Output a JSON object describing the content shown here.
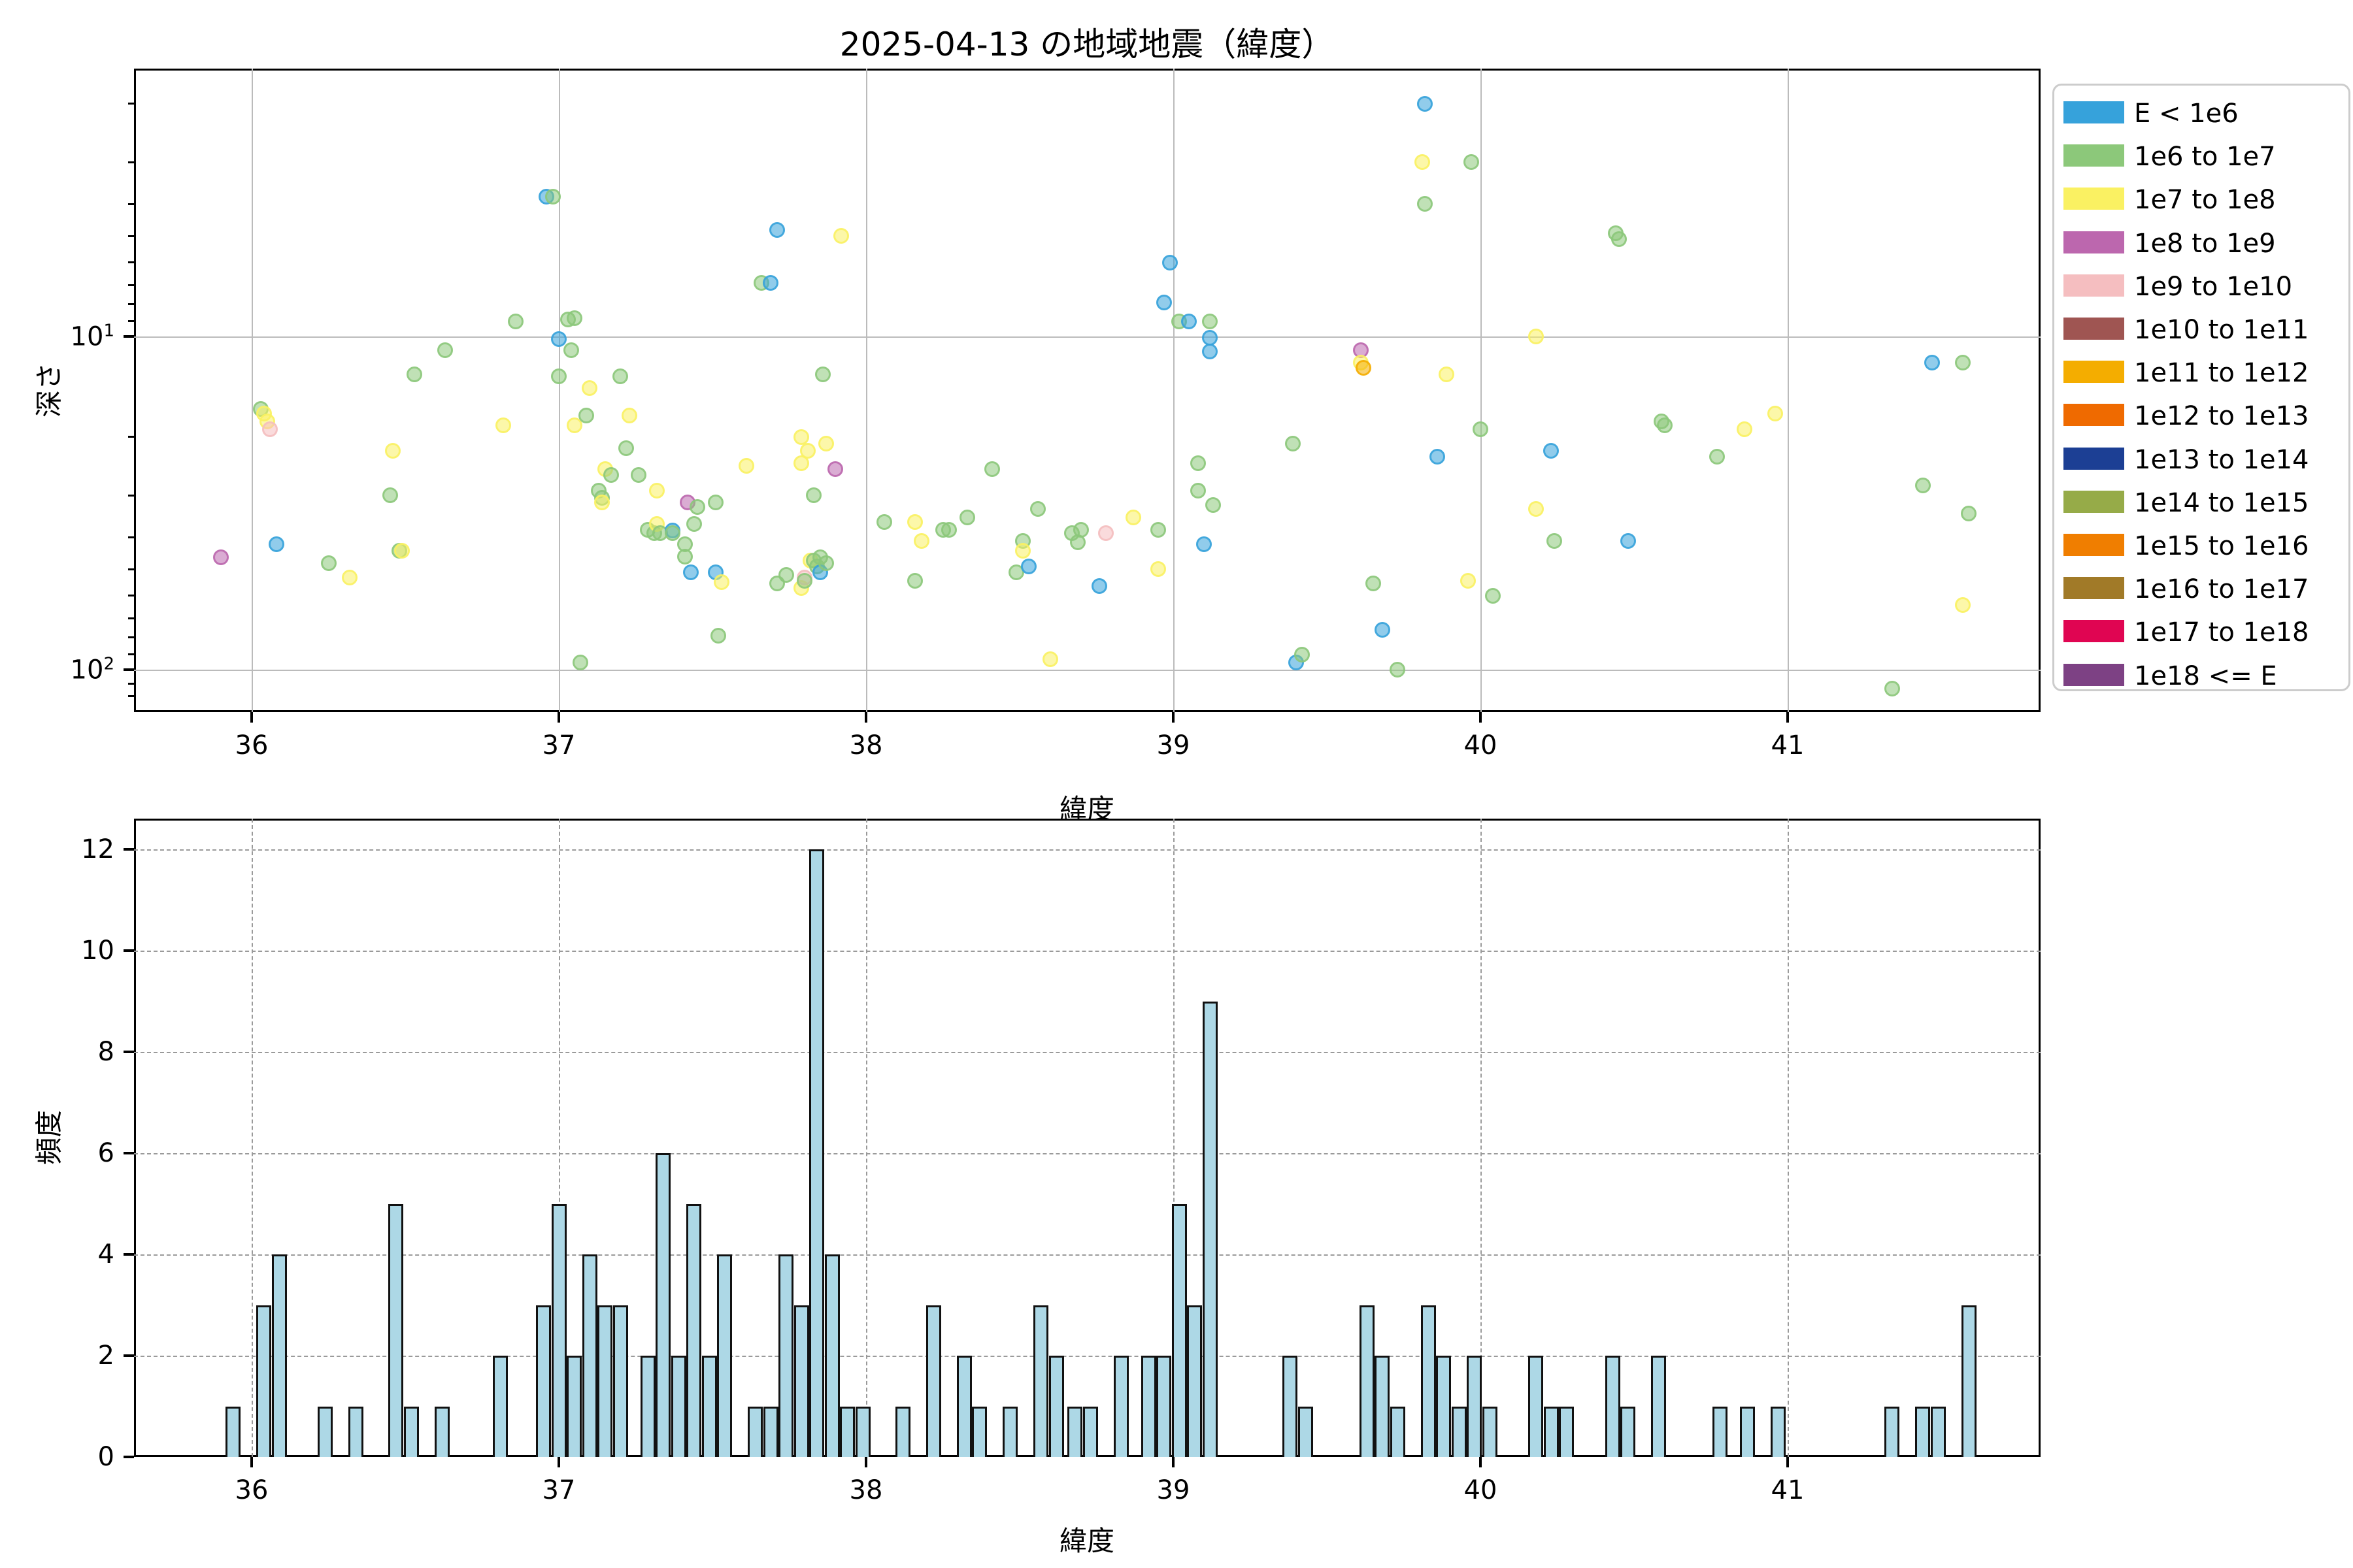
{
  "title": "2025-04-13 の地域地震（緯度）",
  "scatter_axes": {
    "xlabel": "緯度",
    "ylabel": "深さ",
    "x_ticks": [
      "36",
      "37",
      "38",
      "39",
      "40",
      "41"
    ],
    "y_ticks": [
      "10^1",
      "10^2"
    ]
  },
  "hist_axes": {
    "xlabel": "緯度",
    "ylabel": "頻度",
    "x_ticks": [
      "36",
      "37",
      "38",
      "39",
      "40",
      "41"
    ],
    "y_ticks": [
      "0",
      "2",
      "4",
      "6",
      "8",
      "10",
      "12"
    ]
  },
  "legend": {
    "entries": [
      {
        "label": "E < 1e6",
        "color": "#36A2DB"
      },
      {
        "label": "1e6 to 1e7",
        "color": "#8CC87A"
      },
      {
        "label": "1e7 to 1e8",
        "color": "#FAF162"
      },
      {
        "label": "1e8 to 1e9",
        "color": "#BC67AE"
      },
      {
        "label": "1e9 to 1e10",
        "color": "#F5BEC0"
      },
      {
        "label": "1e10 to 1e11",
        "color": "#9F5552"
      },
      {
        "label": "1e11 to 1e12",
        "color": "#F4AD00"
      },
      {
        "label": "1e12 to 1e13",
        "color": "#EF6A00"
      },
      {
        "label": "1e13 to 1e14",
        "color": "#1C3F94"
      },
      {
        "label": "1e14 to 1e15",
        "color": "#96AB48"
      },
      {
        "label": "1e15 to 1e16",
        "color": "#F07E00"
      },
      {
        "label": "1e16 to 1e17",
        "color": "#A17A28"
      },
      {
        "label": "1e17 to 1e18",
        "color": "#E00552"
      },
      {
        "label": "1e18 <= E",
        "color": "#7D4184"
      }
    ]
  },
  "chart_data": [
    {
      "type": "scatter",
      "title": "2025-04-13 の地域地震（緯度）",
      "xlabel": "緯度",
      "ylabel": "深さ",
      "xlim": [
        35.6,
        41.82
      ],
      "ylim_log_inverted_depth": [
        1.6,
        134
      ],
      "grid": "solid",
      "legend_position": "outside-right",
      "series_note": "points are [latitude, depth_km, legend_class_index]; class indexes refer to legend.entries",
      "points": [
        [
          35.9,
          46,
          3
        ],
        [
          36.03,
          16.5,
          1
        ],
        [
          36.04,
          17,
          2
        ],
        [
          36.05,
          18,
          2
        ],
        [
          36.06,
          19,
          4
        ],
        [
          36.08,
          42,
          0
        ],
        [
          36.25,
          48,
          1
        ],
        [
          36.32,
          53,
          2
        ],
        [
          36.45,
          30,
          1
        ],
        [
          36.46,
          22,
          2
        ],
        [
          36.48,
          44,
          1
        ],
        [
          36.49,
          44,
          2
        ],
        [
          36.53,
          13,
          1
        ],
        [
          36.63,
          11,
          1
        ],
        [
          36.82,
          18.5,
          2
        ],
        [
          36.86,
          9,
          1
        ],
        [
          36.96,
          3.8,
          0
        ],
        [
          36.98,
          3.8,
          1
        ],
        [
          37.0,
          10.2,
          0
        ],
        [
          37.0,
          13.2,
          1
        ],
        [
          37.03,
          8.9,
          1
        ],
        [
          37.05,
          8.8,
          1
        ],
        [
          37.04,
          11,
          1
        ],
        [
          37.05,
          18.5,
          2
        ],
        [
          37.09,
          17.3,
          1
        ],
        [
          37.1,
          14.3,
          2
        ],
        [
          37.13,
          29,
          1
        ],
        [
          37.14,
          30.5,
          1
        ],
        [
          37.14,
          31.5,
          2
        ],
        [
          37.15,
          25,
          2
        ],
        [
          37.17,
          26,
          1
        ],
        [
          37.2,
          13.2,
          1
        ],
        [
          37.22,
          21.6,
          1
        ],
        [
          37.23,
          17.3,
          2
        ],
        [
          37.26,
          26,
          1
        ],
        [
          37.29,
          38,
          1
        ],
        [
          37.31,
          39,
          1
        ],
        [
          37.32,
          29,
          2
        ],
        [
          37.32,
          36.6,
          2
        ],
        [
          37.33,
          39,
          1
        ],
        [
          37.37,
          38.2,
          0
        ],
        [
          37.37,
          39,
          1
        ],
        [
          37.41,
          42,
          1
        ],
        [
          37.41,
          45.7,
          1
        ],
        [
          37.42,
          31.5,
          3
        ],
        [
          37.43,
          51,
          0
        ],
        [
          37.44,
          36.6,
          1
        ],
        [
          37.45,
          32.5,
          1
        ],
        [
          37.51,
          31.5,
          1
        ],
        [
          37.51,
          51,
          0
        ],
        [
          37.53,
          54.5,
          2
        ],
        [
          37.52,
          79,
          1
        ],
        [
          37.61,
          24.5,
          2
        ],
        [
          37.66,
          6.9,
          1
        ],
        [
          37.69,
          6.9,
          0
        ],
        [
          37.71,
          4.8,
          0
        ],
        [
          37.71,
          55,
          1
        ],
        [
          37.74,
          52,
          1
        ],
        [
          37.79,
          20,
          2
        ],
        [
          37.81,
          22,
          2
        ],
        [
          37.87,
          21,
          2
        ],
        [
          37.79,
          24,
          2
        ],
        [
          37.9,
          25,
          3
        ],
        [
          37.83,
          30,
          1
        ],
        [
          37.79,
          57,
          2
        ],
        [
          37.8,
          53,
          4
        ],
        [
          37.8,
          54,
          1
        ],
        [
          37.82,
          47,
          2
        ],
        [
          37.83,
          47,
          1
        ],
        [
          37.84,
          49,
          1
        ],
        [
          37.85,
          46,
          1
        ],
        [
          37.85,
          51,
          0
        ],
        [
          37.87,
          48,
          1
        ],
        [
          37.86,
          13,
          1
        ],
        [
          37.92,
          5.0,
          2
        ],
        [
          37.07,
          95,
          1
        ],
        [
          38.06,
          36,
          1
        ],
        [
          38.16,
          36,
          2
        ],
        [
          38.16,
          54,
          1
        ],
        [
          38.18,
          41,
          2
        ],
        [
          38.25,
          38,
          1
        ],
        [
          38.27,
          38,
          1
        ],
        [
          38.33,
          35,
          1
        ],
        [
          38.41,
          25,
          1
        ],
        [
          38.49,
          51,
          1
        ],
        [
          38.51,
          41,
          1
        ],
        [
          38.51,
          44,
          2
        ],
        [
          38.53,
          49,
          0
        ],
        [
          38.56,
          33,
          1
        ],
        [
          38.6,
          93,
          2
        ],
        [
          38.67,
          39,
          1
        ],
        [
          38.69,
          41.5,
          1
        ],
        [
          38.7,
          38,
          1
        ],
        [
          38.76,
          56,
          0
        ],
        [
          38.78,
          39,
          4
        ],
        [
          38.87,
          35,
          2
        ],
        [
          38.95,
          38,
          1
        ],
        [
          38.95,
          50,
          2
        ],
        [
          38.97,
          7.9,
          0
        ],
        [
          38.99,
          6.0,
          0
        ],
        [
          39.02,
          9.0,
          1
        ],
        [
          39.05,
          9.0,
          0
        ],
        [
          39.08,
          24,
          1
        ],
        [
          39.08,
          29,
          1
        ],
        [
          39.1,
          42,
          0
        ],
        [
          39.12,
          9.0,
          1
        ],
        [
          39.12,
          10.1,
          0
        ],
        [
          39.12,
          11.1,
          0
        ],
        [
          39.13,
          32,
          1
        ],
        [
          39.39,
          21,
          1
        ],
        [
          39.4,
          95,
          0
        ],
        [
          39.42,
          90,
          1
        ],
        [
          39.61,
          11,
          3
        ],
        [
          39.61,
          12,
          2
        ],
        [
          39.62,
          12.4,
          6
        ],
        [
          39.65,
          55,
          1
        ],
        [
          39.68,
          76,
          0
        ],
        [
          39.73,
          100,
          1
        ],
        [
          39.81,
          3.0,
          2
        ],
        [
          39.82,
          2.0,
          0
        ],
        [
          39.82,
          4.0,
          1
        ],
        [
          39.86,
          23,
          0
        ],
        [
          39.89,
          13,
          2
        ],
        [
          39.96,
          54,
          2
        ],
        [
          39.97,
          3.0,
          1
        ],
        [
          40.0,
          19,
          1
        ],
        [
          40.04,
          60,
          1
        ],
        [
          40.18,
          10,
          2
        ],
        [
          40.18,
          33,
          2
        ],
        [
          40.23,
          22,
          0
        ],
        [
          40.24,
          41,
          1
        ],
        [
          40.44,
          4.9,
          1
        ],
        [
          40.45,
          5.1,
          1
        ],
        [
          40.48,
          41,
          0
        ],
        [
          40.59,
          18,
          1
        ],
        [
          40.6,
          18.5,
          1
        ],
        [
          40.77,
          23,
          1
        ],
        [
          40.86,
          19,
          2
        ],
        [
          40.96,
          17,
          2
        ],
        [
          41.34,
          114,
          1
        ],
        [
          41.44,
          28,
          1
        ],
        [
          41.47,
          12,
          0
        ],
        [
          41.57,
          12,
          1
        ],
        [
          41.57,
          64,
          2
        ],
        [
          41.59,
          34,
          1
        ]
      ]
    },
    {
      "type": "bar",
      "xlabel": "緯度",
      "ylabel": "頻度",
      "xlim": [
        35.6,
        41.82
      ],
      "ylim": [
        0,
        12.6
      ],
      "grid": "dashed",
      "bar_color": "#ADD8E6",
      "bin_width": 0.05,
      "bars_note": "bars are [bin_center_latitude, frequency]",
      "bars": [
        [
          35.94,
          1
        ],
        [
          36.04,
          3
        ],
        [
          36.09,
          4
        ],
        [
          36.24,
          1
        ],
        [
          36.34,
          1
        ],
        [
          36.47,
          5
        ],
        [
          36.52,
          1
        ],
        [
          36.62,
          1
        ],
        [
          36.81,
          2
        ],
        [
          36.95,
          3
        ],
        [
          37.0,
          5
        ],
        [
          37.05,
          2
        ],
        [
          37.1,
          4
        ],
        [
          37.15,
          3
        ],
        [
          37.2,
          3
        ],
        [
          37.29,
          2
        ],
        [
          37.34,
          6
        ],
        [
          37.39,
          2
        ],
        [
          37.44,
          5
        ],
        [
          37.49,
          2
        ],
        [
          37.54,
          4
        ],
        [
          37.64,
          1
        ],
        [
          37.69,
          1
        ],
        [
          37.74,
          4
        ],
        [
          37.79,
          3
        ],
        [
          37.84,
          12
        ],
        [
          37.89,
          4
        ],
        [
          37.94,
          1
        ],
        [
          37.99,
          1
        ],
        [
          38.12,
          1
        ],
        [
          38.22,
          3
        ],
        [
          38.32,
          2
        ],
        [
          38.37,
          1
        ],
        [
          38.47,
          1
        ],
        [
          38.57,
          3
        ],
        [
          38.62,
          2
        ],
        [
          38.68,
          1
        ],
        [
          38.73,
          1
        ],
        [
          38.83,
          2
        ],
        [
          38.92,
          2
        ],
        [
          38.97,
          2
        ],
        [
          39.02,
          5
        ],
        [
          39.07,
          3
        ],
        [
          39.12,
          9
        ],
        [
          39.38,
          2
        ],
        [
          39.43,
          1
        ],
        [
          39.63,
          3
        ],
        [
          39.68,
          2
        ],
        [
          39.73,
          1
        ],
        [
          39.83,
          3
        ],
        [
          39.88,
          2
        ],
        [
          39.93,
          1
        ],
        [
          39.98,
          2
        ],
        [
          40.03,
          1
        ],
        [
          40.18,
          2
        ],
        [
          40.23,
          1
        ],
        [
          40.28,
          1
        ],
        [
          40.43,
          2
        ],
        [
          40.48,
          1
        ],
        [
          40.58,
          2
        ],
        [
          40.78,
          1
        ],
        [
          40.87,
          1
        ],
        [
          40.97,
          1
        ],
        [
          41.34,
          1
        ],
        [
          41.44,
          1
        ],
        [
          41.49,
          1
        ],
        [
          41.59,
          3
        ]
      ]
    }
  ]
}
